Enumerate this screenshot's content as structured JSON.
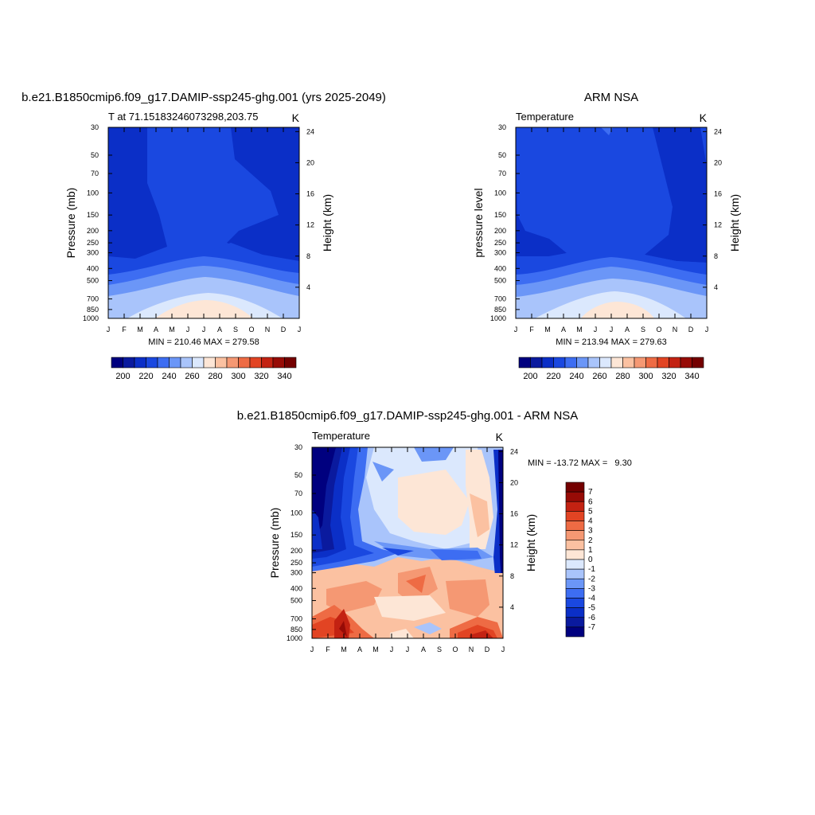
{
  "colors": {
    "cold_scale": [
      "#00007f",
      "#0a1a9e",
      "#0b2fc7",
      "#1a48e0",
      "#3d6df2",
      "#6b96f7",
      "#a9c4fb",
      "#dbe8fd",
      "#fde6d6",
      "#fbc1a1",
      "#f59873",
      "#ee6b44",
      "#e24423",
      "#c32212",
      "#970b06",
      "#740000"
    ],
    "diff_scale": [
      "#00007f",
      "#0a1a9e",
      "#0b2fc7",
      "#1a48e0",
      "#3d6df2",
      "#6b96f7",
      "#a9c4fb",
      "#dbe8fd",
      "#fde6d6",
      "#fbc1a1",
      "#f59873",
      "#ee6b44",
      "#e24423",
      "#c32212",
      "#970b06",
      "#740000"
    ]
  },
  "chart_data": [
    {
      "type": "heatmap",
      "title": "b.e21.B1850cmip6.f09_g17.DAMIP-ssp245-ghg.001 (yrs 2025-2049)",
      "subtitle_left": "T at 71.15183246073298,203.75",
      "subtitle_right": "K",
      "ylabel": "Pressure (mb)",
      "ylabel_right": "Height (km)",
      "stats": "MIN = 210.46 MAX = 279.58",
      "x": [
        "J",
        "F",
        "M",
        "A",
        "M",
        "J",
        "J",
        "A",
        "S",
        "O",
        "N",
        "D",
        "J"
      ],
      "y_ticks": [
        "30",
        "50",
        "70",
        "100",
        "150",
        "200",
        "250",
        "300",
        "400",
        "500",
        "700",
        "850",
        "1000"
      ],
      "y_ticks_right": [
        "24",
        "20",
        "16",
        "12",
        "8",
        "4"
      ],
      "colorbar_labels": [
        "200",
        "220",
        "240",
        "260",
        "280",
        "300",
        "320",
        "340"
      ],
      "levels": [
        195,
        200,
        205,
        210,
        215,
        220,
        225,
        230,
        235,
        240,
        245,
        250,
        255,
        260,
        265,
        270,
        275,
        280,
        285,
        290,
        295,
        300,
        305,
        310,
        315,
        320,
        325,
        330,
        335,
        340,
        345,
        350
      ],
      "value_range": [
        210.46,
        279.58
      ]
    },
    {
      "type": "heatmap",
      "title": "ARM NSA",
      "subtitle_left": "Temperature",
      "subtitle_right": "K",
      "ylabel": "pressure level",
      "ylabel_right": "Height (km)",
      "stats": "MIN = 213.94 MAX = 279.63",
      "x": [
        "J",
        "F",
        "M",
        "A",
        "M",
        "J",
        "J",
        "A",
        "S",
        "O",
        "N",
        "D",
        "J"
      ],
      "y_ticks": [
        "30",
        "50",
        "70",
        "100",
        "150",
        "200",
        "250",
        "300",
        "400",
        "500",
        "700",
        "850",
        "1000"
      ],
      "y_ticks_right": [
        "24",
        "20",
        "16",
        "12",
        "8",
        "4"
      ],
      "colorbar_labels": [
        "200",
        "220",
        "240",
        "260",
        "280",
        "300",
        "320",
        "340"
      ],
      "value_range": [
        213.94,
        279.63
      ]
    },
    {
      "type": "heatmap",
      "title": "b.e21.B1850cmip6.f09_g17.DAMIP-ssp245-ghg.001 - ARM NSA",
      "subtitle_left": "Temperature",
      "subtitle_right": "K",
      "ylabel": "Pressure (mb)",
      "ylabel_right": "Height (km)",
      "stats": "MIN = -13.72 MAX =   9.30",
      "x": [
        "J",
        "F",
        "M",
        "A",
        "M",
        "J",
        "J",
        "A",
        "S",
        "O",
        "N",
        "D",
        "J"
      ],
      "y_ticks": [
        "30",
        "50",
        "70",
        "100",
        "150",
        "200",
        "250",
        "300",
        "400",
        "500",
        "700",
        "850",
        "1000"
      ],
      "y_ticks_right": [
        "24",
        "20",
        "16",
        "12",
        "8",
        "4"
      ],
      "colorbar_labels": [
        "7",
        "6",
        "5",
        "4",
        "3",
        "2",
        "1",
        "0",
        "-1",
        "-2",
        "-3",
        "-4",
        "-5",
        "-6",
        "-7"
      ],
      "value_range": [
        -13.72,
        9.3
      ]
    }
  ]
}
